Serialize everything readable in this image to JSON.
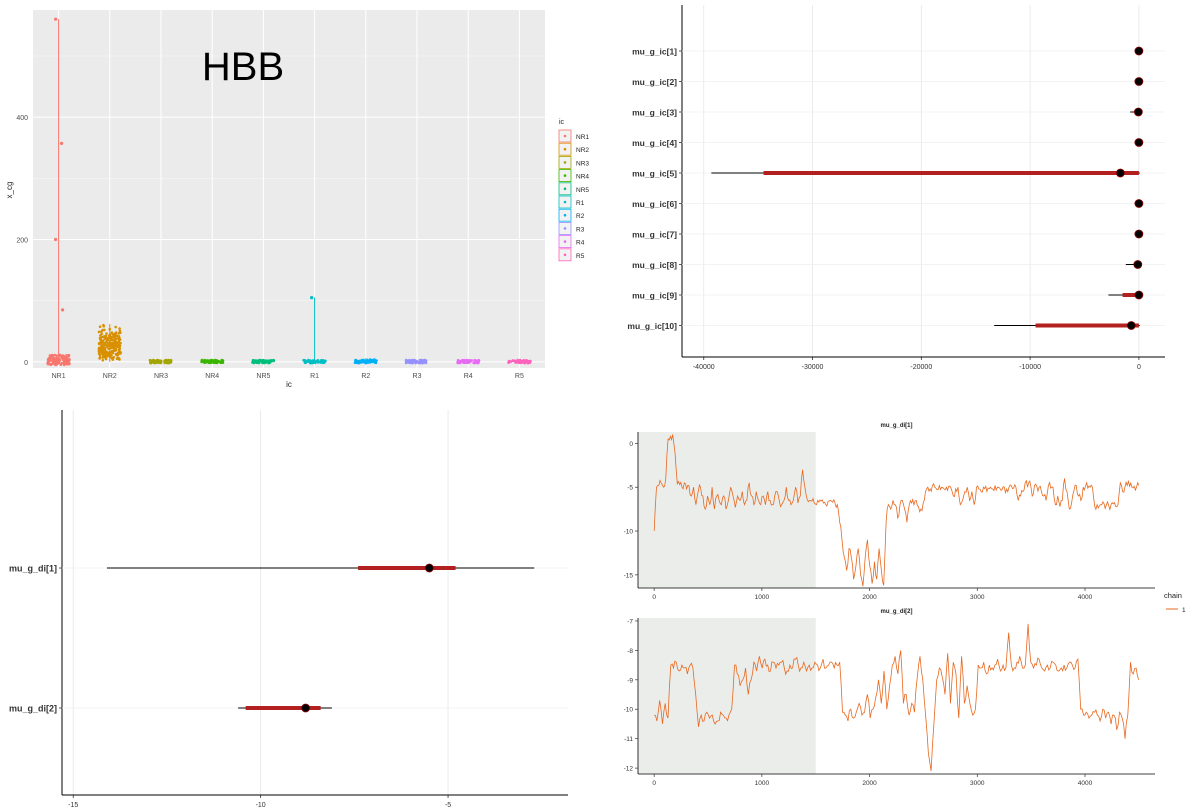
{
  "chart_data": [
    {
      "type": "scatter",
      "overlay_title": "HBB",
      "xlabel": "ic",
      "ylabel": "x_cg",
      "categories": [
        "NR1",
        "NR2",
        "NR3",
        "NR4",
        "NR5",
        "R1",
        "R2",
        "R3",
        "R4",
        "R5"
      ],
      "colors": [
        "#F8766D",
        "#D89000",
        "#A3A500",
        "#39B600",
        "#00BF7D",
        "#00BFC4",
        "#00B0F6",
        "#9590FF",
        "#E76BF3",
        "#FF62BC"
      ],
      "legend_title": "ic",
      "legend_position": "right",
      "yticks": [
        0,
        200,
        400
      ],
      "ylim": [
        -10,
        575
      ],
      "group_max": [
        560,
        62,
        4,
        5,
        3,
        105,
        6,
        3,
        3,
        3
      ],
      "group_bulk_range": [
        [
          -5,
          12
        ],
        [
          2,
          55
        ],
        [
          -2,
          3
        ],
        [
          -2,
          3
        ],
        [
          -2,
          3
        ],
        [
          -2,
          3
        ],
        [
          -2,
          4
        ],
        [
          -2,
          3
        ],
        [
          -2,
          3
        ],
        [
          -2,
          3
        ]
      ],
      "outliers": [
        {
          "group": "NR1",
          "y": 560
        },
        {
          "group": "NR1",
          "y": 357
        },
        {
          "group": "NR1",
          "y": 200
        },
        {
          "group": "NR1",
          "y": 85
        },
        {
          "group": "R1",
          "y": 105
        }
      ],
      "grid": true
    },
    {
      "type": "interval",
      "labels": [
        "mu_g_ic[1]",
        "mu_g_ic[2]",
        "mu_g_ic[3]",
        "mu_g_ic[4]",
        "mu_g_ic[5]",
        "mu_g_ic[6]",
        "mu_g_ic[7]",
        "mu_g_ic[8]",
        "mu_g_ic[9]",
        "mu_g_ic[10]"
      ],
      "estimate": [
        0,
        0,
        -50,
        0,
        -1700,
        0,
        0,
        -100,
        0,
        -700
      ],
      "inner": [
        [
          -100,
          60
        ],
        [
          -150,
          60
        ],
        [
          -400,
          80
        ],
        [
          -100,
          60
        ],
        [
          -34500,
          0
        ],
        [
          -50,
          60
        ],
        [
          -50,
          60
        ],
        [
          -400,
          60
        ],
        [
          -1500,
          60
        ],
        [
          -9500,
          0
        ]
      ],
      "outer": [
        [
          -200,
          80
        ],
        [
          -250,
          80
        ],
        [
          -800,
          100
        ],
        [
          -200,
          80
        ],
        [
          -39300,
          80
        ],
        [
          -100,
          80
        ],
        [
          -100,
          80
        ],
        [
          -1200,
          80
        ],
        [
          -2800,
          80
        ],
        [
          -13300,
          80
        ]
      ],
      "xticks": [
        -40000,
        -30000,
        -20000,
        -10000,
        0
      ],
      "xlim": [
        -42000,
        2400
      ]
    },
    {
      "type": "interval",
      "labels": [
        "mu_g_di[1]",
        "mu_g_di[2]"
      ],
      "estimate": [
        -5.5,
        -8.8
      ],
      "inner": [
        [
          -7.4,
          -4.8
        ],
        [
          -10.4,
          -8.4
        ]
      ],
      "outer": [
        [
          -14.1,
          -2.7
        ],
        [
          -10.6,
          -8.1
        ]
      ],
      "xticks": [
        -15,
        -10,
        -5
      ],
      "xtick_labels": [
        "-15",
        "-10",
        "-5"
      ],
      "xlim": [
        -15.3,
        -1.8
      ]
    },
    {
      "type": "line",
      "title": "mu_g_di[1]",
      "series_name": "1",
      "color": "#E8681E",
      "xticks": [
        0,
        1000,
        2000,
        3000,
        4000
      ],
      "yticks": [
        0,
        -5,
        -10,
        -15
      ],
      "xlim": [
        -150,
        4650
      ],
      "ylim": [
        -16.5,
        1.3
      ],
      "warmup_end": 1500,
      "values_sampled": [
        -10,
        -5,
        -4.8,
        -4.5,
        -5,
        -4,
        0.5,
        0.8,
        1,
        -1,
        -4.6,
        -4.7,
        -5,
        -4.5,
        -5.2,
        -4.8,
        -6,
        -5,
        -7,
        -5.5,
        -5,
        -6,
        -7.5,
        -6,
        -7,
        -5,
        -7.5,
        -6,
        -6.5,
        -7,
        -6,
        -7.5,
        -6.5,
        -5,
        -6,
        -7.3,
        -6,
        -6.5,
        -5.5,
        -7,
        -6.5,
        -4.5,
        -6,
        -7,
        -5.5,
        -6.5,
        -7,
        -6,
        -7,
        -5.5,
        -6.5,
        -7,
        -6,
        -5.5,
        -6.6,
        -7,
        -6.5,
        -5,
        -6.5,
        -7,
        -6.5,
        -5,
        -6.8,
        -6,
        -3,
        -5,
        -6.4,
        -6.5,
        -6.6,
        -6.8,
        -7,
        -6.7,
        -6.6,
        -6.8,
        -7,
        -6.6,
        -6.5,
        -6.7,
        -6.8,
        -7,
        -9,
        -11,
        -13,
        -14.5,
        -12,
        -13,
        -15.5,
        -14,
        -12,
        -15,
        -16.3,
        -13,
        -11,
        -14,
        -16,
        -13.5,
        -15.5,
        -12,
        -14.5,
        -16.2,
        -9,
        -7,
        -7.5,
        -6.5,
        -7,
        -8.5,
        -7,
        -6.5,
        -7.5,
        -9,
        -7,
        -6.8,
        -7,
        -6.5,
        -7.2,
        -7.5,
        -6.8,
        -5.5,
        -5,
        -5.2,
        -4.8,
        -5,
        -5.3,
        -4.8,
        -5,
        -5.2,
        -5,
        -4.9,
        -5.1,
        -6,
        -5.2,
        -5,
        -7,
        -6.5,
        -5.5,
        -5,
        -6.5,
        -5.5,
        -7,
        -5,
        -5.2,
        -5.5,
        -5,
        -4.9,
        -5.1,
        -5,
        -5.2,
        -4.8,
        -5,
        -5.1,
        -5.3,
        -5,
        -5.2,
        -5,
        -4.8,
        -5.1,
        -5,
        -6.5,
        -6,
        -5.5,
        -4.5,
        -5,
        -4.3,
        -6,
        -4.8,
        -4.9,
        -5,
        -5.5,
        -6,
        -6.5,
        -4.8,
        -5.1,
        -5,
        -7,
        -6,
        -7.2,
        -6.5,
        -4,
        -5.5,
        -7.5,
        -6.8,
        -5.4,
        -4.8,
        -6,
        -6.5,
        -5,
        -4.9,
        -5.1,
        -5,
        -5,
        -7.2,
        -7,
        -7.1,
        -7,
        -6.9,
        -7,
        -7.1,
        -7,
        -6.9,
        -7.2,
        -7,
        -4.5,
        -5.5,
        -5,
        -4.8,
        -4.9,
        -5,
        -4.9,
        -5,
        -4.8
      ]
    },
    {
      "type": "line",
      "title": "mu_g_di[2]",
      "series_name": "1",
      "color": "#E8681E",
      "xticks": [
        0,
        1000,
        2000,
        3000,
        4000
      ],
      "yticks": [
        -7,
        -8,
        -9,
        -10,
        -11,
        -12
      ],
      "xlim": [
        -150,
        4650
      ],
      "ylim": [
        -12.2,
        -6.9
      ],
      "warmup_end": 1500,
      "values_sampled": [
        -10.2,
        -10.4,
        -9.7,
        -10.5,
        -9.8,
        -10.3,
        -8.5,
        -8.6,
        -8.4,
        -8.7,
        -8.5,
        -8.6,
        -8.8,
        -8.5,
        -8.6,
        -9.5,
        -10.6,
        -10.2,
        -10.4,
        -10.1,
        -10.3,
        -10.2,
        -10.5,
        -10.4,
        -10.1,
        -10.2,
        -10.3,
        -10.2,
        -10,
        -8.5,
        -8.8,
        -9.2,
        -9.0,
        -8.6,
        -9.5,
        -9.0,
        -8.4,
        -8.7,
        -8.2,
        -8.6,
        -8.3,
        -8.5,
        -8.7,
        -8.4,
        -8.6,
        -8.5,
        -8.4,
        -8.6,
        -8.7,
        -8.5,
        -8.6,
        -8.3,
        -8.5,
        -8.6,
        -8.4,
        -8.7,
        -8.5,
        -8.6,
        -8.4,
        -8.5,
        -8.6,
        -8.3,
        -8.6,
        -8.5,
        -8.4,
        -8.6,
        -8.5,
        -8.4,
        -10.1,
        -10.2,
        -10.4,
        -10,
        -10.3,
        -10.1,
        -9.8,
        -10.2,
        -10.1,
        -9.5,
        -10.3,
        -10,
        -9.6,
        -9,
        -9.8,
        -8.7,
        -10,
        -9.2,
        -8.5,
        -8.2,
        -8.8,
        -8,
        -9.8,
        -9.5,
        -10.2,
        -9.8,
        -10.1,
        -8.9,
        -8.2,
        -9,
        -10.2,
        -11.5,
        -12.1,
        -10.5,
        -9,
        -8.6,
        -8.9,
        -9.5,
        -8.1,
        -9.8,
        -8.4,
        -8.8,
        -10.3,
        -8.2,
        -9.8,
        -9.2,
        -9.8,
        -10.2,
        -10,
        -8.5,
        -8.6,
        -8.4,
        -8.8,
        -8.5,
        -8.6,
        -8.5,
        -8.3,
        -8.7,
        -8.5,
        -8.6,
        -7.4,
        -8.5,
        -8.6,
        -8.4,
        -8.2,
        -8.6,
        -8.5,
        -7.1,
        -8.4,
        -8.6,
        -8.5,
        -8.3,
        -8.6,
        -8.7,
        -8.5,
        -8.6,
        -8.4,
        -8.5,
        -8.7,
        -8.6,
        -8.5,
        -8.6,
        -8.4,
        -8.5,
        -8.6,
        -8.3,
        -10,
        -10.2,
        -10.1,
        -10.3,
        -10.2,
        -10.1,
        -10.2,
        -10.4,
        -10,
        -10.3,
        -10.1,
        -10.5,
        -10.2,
        -10.7,
        -10.1,
        -10.3,
        -11,
        -10.2,
        -8.4,
        -8.8,
        -8.6,
        -9
      ]
    }
  ]
}
